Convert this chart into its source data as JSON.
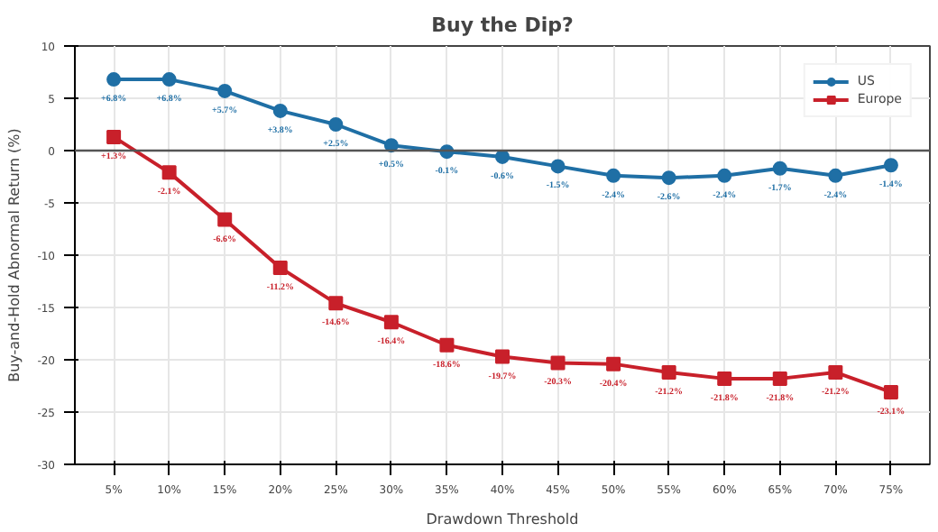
{
  "chart_data": {
    "type": "line",
    "title": "Buy the Dip?",
    "xlabel": "Drawdown Threshold",
    "ylabel": "Buy-and-Hold Abnormal Return (%)",
    "categories": [
      "5%",
      "10%",
      "15%",
      "20%",
      "25%",
      "30%",
      "35%",
      "40%",
      "45%",
      "50%",
      "55%",
      "60%",
      "65%",
      "70%",
      "75%"
    ],
    "series": [
      {
        "name": "US",
        "color": "#1f6fa5",
        "marker": "circle",
        "values": [
          6.8,
          6.8,
          5.7,
          3.8,
          2.5,
          0.5,
          -0.1,
          -0.6,
          -1.5,
          -2.4,
          -2.6,
          -2.4,
          -1.7,
          -2.4,
          -1.4
        ],
        "value_labels": [
          "+6.8%",
          "+6.8%",
          "+5.7%",
          "+3.8%",
          "+2.5%",
          "+0.5%",
          "-0.1%",
          "-0.6%",
          "-1.5%",
          "-2.4%",
          "-2.6%",
          "-2.4%",
          "-1.7%",
          "-2.4%",
          "-1.4%"
        ]
      },
      {
        "name": "Europe",
        "color": "#c8202a",
        "marker": "square",
        "values": [
          1.3,
          -2.1,
          -6.6,
          -11.2,
          -14.6,
          -16.4,
          -18.6,
          -19.7,
          -20.3,
          -20.4,
          -21.2,
          -21.8,
          -21.8,
          -21.2,
          -23.1
        ],
        "value_labels": [
          "+1.3%",
          "-2.1%",
          "-6.6%",
          "-11.2%",
          "-14.6%",
          "-16.4%",
          "-18.6%",
          "-19.7%",
          "-20.3%",
          "-20.4%",
          "-21.2%",
          "-21.8%",
          "-21.8%",
          "-21.2%",
          "-23.1%"
        ]
      }
    ],
    "ylim": [
      -30,
      10
    ],
    "yticks": [
      -30,
      -25,
      -20,
      -15,
      -10,
      -5,
      0,
      5,
      10
    ],
    "ref_lines": [
      {
        "axis": "y",
        "value": 0,
        "color": "#555555"
      }
    ],
    "grid": true,
    "legend": "top right"
  }
}
